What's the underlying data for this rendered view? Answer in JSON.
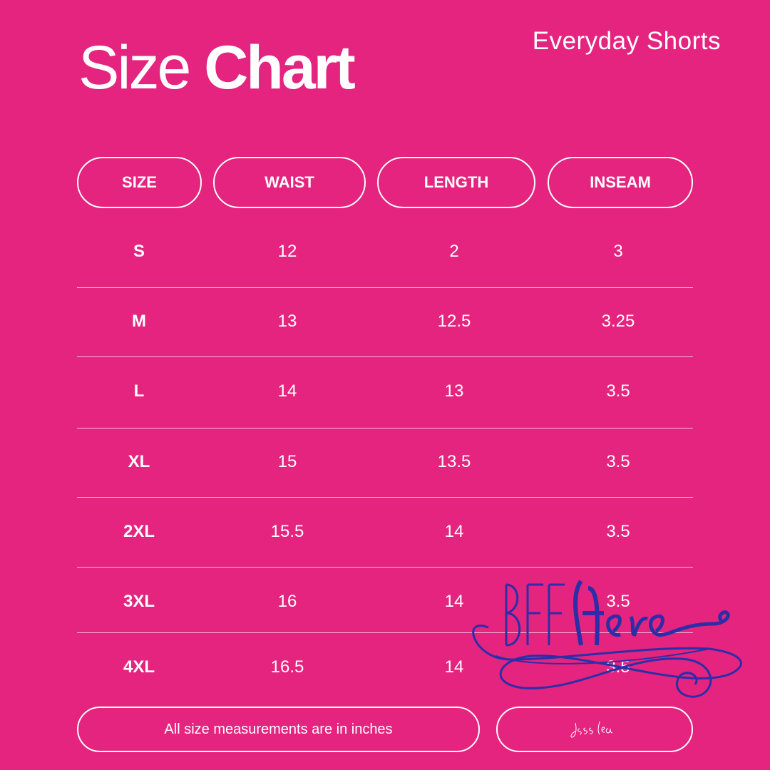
{
  "title": {
    "light": "Size",
    "bold": "Chart"
  },
  "subtitle": "Everyday Shorts",
  "columns": [
    "SIZE",
    "WAIST",
    "LENGTH",
    "INSEAM"
  ],
  "rows": [
    [
      "S",
      "12",
      "2",
      "3"
    ],
    [
      "M",
      "13",
      "12.5",
      "3.25"
    ],
    [
      "L",
      "14",
      "13",
      "3.5"
    ],
    [
      "XL",
      "15",
      "13.5",
      "3.5"
    ],
    [
      "2XL",
      "15.5",
      "14",
      "3.5"
    ],
    [
      "3XL",
      "16",
      "14",
      "3.5"
    ],
    [
      "4XL",
      "16.5",
      "14",
      "3.5"
    ]
  ],
  "footer_note": "All size measurements are in inches",
  "signature": "jess lea",
  "logo_text": "BFF Here",
  "colors": {
    "background": "#E4247F",
    "text": "#FFFFFF",
    "logo": "#2233AA"
  }
}
